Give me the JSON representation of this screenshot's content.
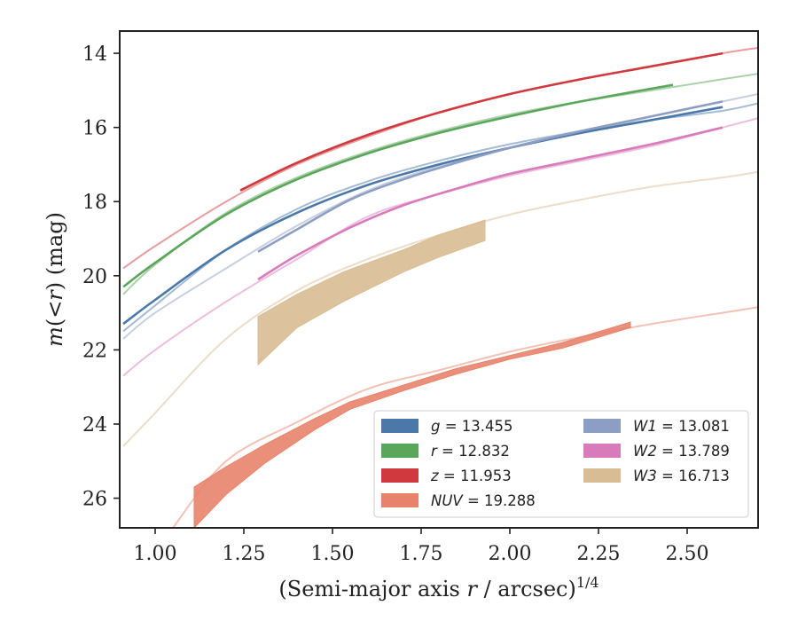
{
  "chart_data": {
    "type": "line",
    "title": "",
    "xlabel": "(Semi-major axis r / arcsec)^1/4",
    "xlabel_parts": {
      "pre": "(Semi-major axis ",
      "var": "r",
      "post": " / arcsec)",
      "sup": "1/4"
    },
    "ylabel": "m(<r) (mag)",
    "ylabel_parts": {
      "pre": "m(<",
      "var": "r",
      "post": ") (mag)"
    },
    "xlim": [
      0.9,
      2.7
    ],
    "ylim": [
      26.8,
      13.4
    ],
    "y_inverted": true,
    "xticks": [
      1.0,
      1.25,
      1.5,
      1.75,
      2.0,
      2.25,
      2.5
    ],
    "xtick_labels": [
      "1.00",
      "1.25",
      "1.50",
      "1.75",
      "2.00",
      "2.25",
      "2.50"
    ],
    "yticks": [
      14,
      16,
      18,
      20,
      22,
      24,
      26
    ],
    "ytick_labels": [
      "14",
      "16",
      "18",
      "20",
      "22",
      "24",
      "26"
    ],
    "grid": false,
    "legend_position": "bottom-right",
    "legend_columns": 2,
    "series": [
      {
        "name": "g = 13.455",
        "band": "g",
        "mag": "13.455",
        "color": "#4a78a8",
        "faint_x": [
          0.91,
          1.0,
          1.2,
          1.4,
          1.6,
          1.8,
          2.0,
          2.2,
          2.4,
          2.6,
          2.7
        ],
        "faint_y": [
          21.5,
          20.8,
          19.3,
          18.2,
          17.45,
          16.9,
          16.45,
          16.1,
          15.8,
          15.55,
          15.35
        ],
        "solid_x": [
          0.91,
          1.0,
          1.2,
          1.4,
          1.6,
          1.8,
          2.0,
          2.2,
          2.4,
          2.6
        ],
        "solid_y": [
          21.3,
          20.65,
          19.3,
          18.3,
          17.55,
          17.0,
          16.55,
          16.15,
          15.8,
          15.45
        ]
      },
      {
        "name": "r = 12.832",
        "band": "r",
        "mag": "12.832",
        "color": "#5aa65a",
        "faint_x": [
          0.91,
          1.0,
          1.2,
          1.4,
          1.6,
          1.8,
          2.0,
          2.2,
          2.4,
          2.6,
          2.7
        ],
        "faint_y": [
          20.5,
          19.7,
          18.3,
          17.35,
          16.65,
          16.1,
          15.65,
          15.3,
          15.0,
          14.7,
          14.55
        ],
        "solid_x": [
          0.91,
          1.0,
          1.2,
          1.4,
          1.6,
          1.8,
          2.0,
          2.2,
          2.46
        ],
        "solid_y": [
          20.3,
          19.65,
          18.35,
          17.4,
          16.7,
          16.15,
          15.7,
          15.3,
          14.85
        ]
      },
      {
        "name": "z = 11.953",
        "band": "z",
        "mag": "11.953",
        "color": "#d03a3f",
        "faint_x": [
          0.91,
          1.0,
          1.2,
          1.4,
          1.6,
          1.8,
          2.0,
          2.2,
          2.4,
          2.6,
          2.7
        ],
        "faint_y": [
          19.8,
          19.2,
          18.0,
          17.0,
          16.25,
          15.6,
          15.1,
          14.7,
          14.35,
          14.0,
          13.85
        ],
        "solid_x": [
          1.24,
          1.4,
          1.6,
          1.8,
          2.0,
          2.2,
          2.4,
          2.6
        ],
        "solid_y": [
          17.7,
          16.95,
          16.2,
          15.6,
          15.1,
          14.7,
          14.35,
          14.0
        ]
      },
      {
        "name": "NUV = 19.288",
        "band": "NUV",
        "mag": "19.288",
        "color": "#e8836b",
        "faint_x": [
          1.05,
          1.2,
          1.4,
          1.6,
          1.8,
          2.0,
          2.2,
          2.4,
          2.6,
          2.7
        ],
        "faint_y": [
          26.8,
          25.0,
          23.95,
          23.05,
          22.55,
          22.05,
          21.65,
          21.3,
          21.0,
          20.85
        ],
        "band_x": [
          1.11,
          1.2,
          1.31,
          1.45,
          1.55,
          1.7,
          1.85,
          2.0,
          2.15,
          2.34
        ],
        "band_upper": [
          25.7,
          25.15,
          24.55,
          23.85,
          23.4,
          22.95,
          22.5,
          22.15,
          21.8,
          21.25
        ],
        "band_lower": [
          26.8,
          25.9,
          25.05,
          24.15,
          23.6,
          23.1,
          22.65,
          22.25,
          21.95,
          21.4
        ]
      },
      {
        "name": "W1 = 13.081",
        "band": "W1",
        "mag": "13.081",
        "color": "#8d9ec4",
        "faint_x": [
          0.91,
          1.0,
          1.2,
          1.4,
          1.6,
          1.8,
          2.0,
          2.2,
          2.4,
          2.6,
          2.7
        ],
        "faint_y": [
          21.7,
          21.0,
          19.8,
          18.65,
          17.7,
          17.05,
          16.55,
          16.1,
          15.7,
          15.3,
          15.1
        ],
        "solid_x": [
          1.29,
          1.4,
          1.55,
          1.7,
          1.85,
          2.0,
          2.2,
          2.4,
          2.6
        ],
        "solid_y": [
          19.35,
          18.75,
          17.95,
          17.4,
          16.95,
          16.55,
          16.1,
          15.7,
          15.3
        ]
      },
      {
        "name": "W2 = 13.789",
        "band": "W2",
        "mag": "13.789",
        "color": "#d97bbb",
        "faint_x": [
          0.91,
          1.0,
          1.2,
          1.4,
          1.6,
          1.8,
          2.0,
          2.2,
          2.4,
          2.6,
          2.7
        ],
        "faint_y": [
          22.7,
          22.0,
          20.7,
          19.55,
          18.4,
          17.8,
          17.3,
          16.9,
          16.5,
          16.0,
          15.75
        ],
        "solid_x": [
          1.29,
          1.4,
          1.55,
          1.7,
          1.85,
          2.0,
          2.2,
          2.4,
          2.6
        ],
        "solid_y": [
          20.1,
          19.45,
          18.7,
          18.1,
          17.65,
          17.25,
          16.85,
          16.45,
          16.0
        ]
      },
      {
        "name": "W3 = 16.713",
        "band": "W3",
        "mag": "16.713",
        "color": "#d8bc93",
        "faint_x": [
          0.91,
          1.0,
          1.2,
          1.4,
          1.6,
          1.8,
          2.0,
          2.2,
          2.4,
          2.6,
          2.7
        ],
        "faint_y": [
          24.6,
          23.7,
          21.7,
          20.4,
          19.55,
          18.9,
          18.35,
          17.95,
          17.6,
          17.35,
          17.2
        ],
        "band_x": [
          1.29,
          1.4,
          1.53,
          1.7,
          1.8,
          1.93
        ],
        "band_upper": [
          21.1,
          20.5,
          19.9,
          19.3,
          18.9,
          18.5
        ],
        "band_lower": [
          22.4,
          21.4,
          20.7,
          19.9,
          19.5,
          19.05
        ]
      }
    ]
  }
}
